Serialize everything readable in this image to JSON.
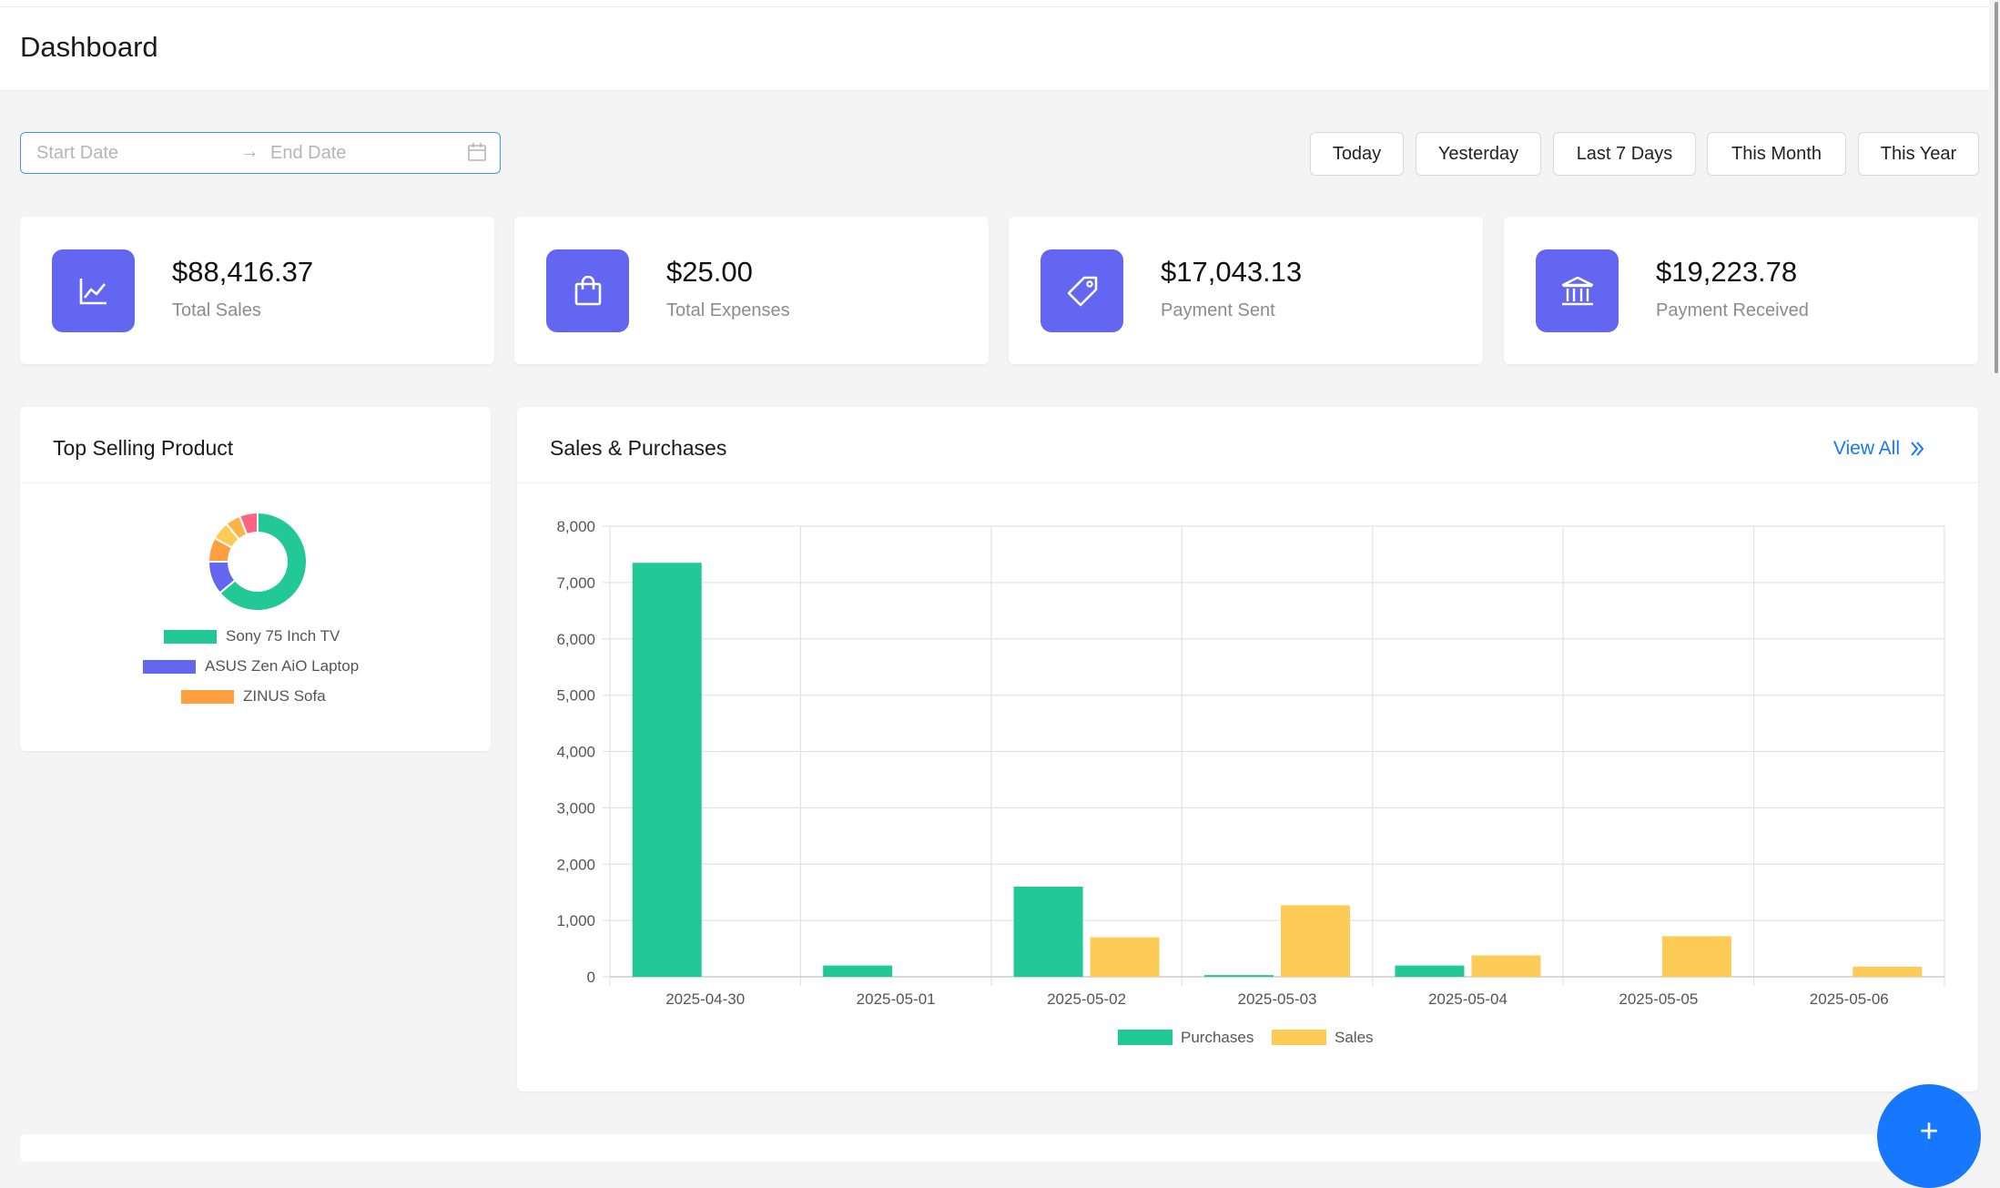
{
  "header": {
    "title": "Dashboard"
  },
  "filters": {
    "start_placeholder": "Start Date",
    "end_placeholder": "End Date",
    "ranges": [
      "Today",
      "Yesterday",
      "Last 7 Days",
      "This Month",
      "This Year"
    ]
  },
  "stats": [
    {
      "value": "$88,416.37",
      "label": "Total Sales",
      "icon": "line-chart-icon"
    },
    {
      "value": "$25.00",
      "label": "Total Expenses",
      "icon": "shopping-bag-icon"
    },
    {
      "value": "$17,043.13",
      "label": "Payment Sent",
      "icon": "tag-icon"
    },
    {
      "value": "$19,223.78",
      "label": "Payment Received",
      "icon": "bank-icon"
    }
  ],
  "top_selling": {
    "title": "Top Selling Product",
    "legend": [
      "Sony 75 Inch TV",
      "ASUS Zen AiO Laptop",
      "ZINUS Sofa"
    ]
  },
  "sales_purchases": {
    "title": "Sales & Purchases",
    "view_all": "View All"
  },
  "colors": {
    "accent": "#6366f1",
    "purchases": "#22c896",
    "sales": "#ffcb57",
    "link": "#1677ff"
  },
  "chart_data": [
    {
      "type": "pie",
      "labels": [
        "Sony 75 Inch TV",
        "ASUS Zen AiO Laptop",
        "ZINUS Sofa",
        "",
        "",
        ""
      ],
      "values": [
        64,
        11,
        8,
        6,
        5,
        6
      ],
      "colors": [
        "#22c896",
        "#6366f1",
        "#ff9f40",
        "#ffcb57",
        "#ffb347",
        "#ff6384"
      ],
      "donut": true
    },
    {
      "type": "bar",
      "categories": [
        "2025-04-30",
        "2025-05-01",
        "2025-05-02",
        "2025-05-03",
        "2025-05-04",
        "2025-05-05",
        "2025-05-06"
      ],
      "series": [
        {
          "name": "Purchases",
          "values": [
            7350,
            200,
            1600,
            30,
            200,
            0,
            0
          ]
        },
        {
          "name": "Sales",
          "values": [
            0,
            0,
            700,
            1270,
            380,
            720,
            180
          ]
        }
      ],
      "ylim": [
        0,
        8000
      ],
      "yticks": [
        "0",
        "1,000",
        "2,000",
        "3,000",
        "4,000",
        "5,000",
        "6,000",
        "7,000",
        "8,000"
      ],
      "grid": true,
      "legend": "bottom"
    }
  ]
}
